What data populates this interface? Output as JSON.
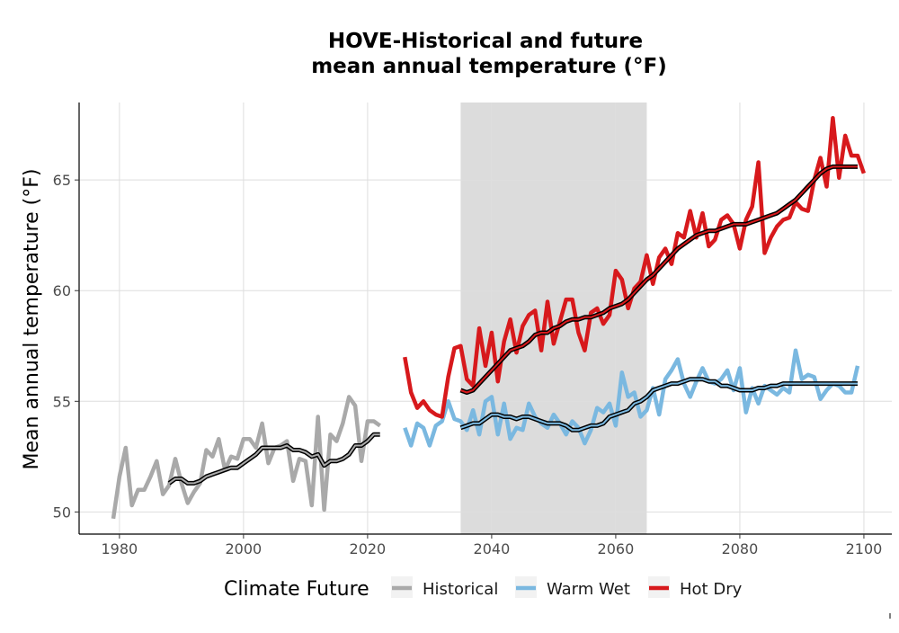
{
  "chart_data": {
    "type": "line",
    "title": [
      "HOVE-Historical and future",
      "mean annual temperature (°F)"
    ],
    "xlabel": "",
    "ylabel": "Mean annual temperature (°F)",
    "xlim": [
      1973.5,
      2104.5
    ],
    "ylim": [
      49,
      68.5
    ],
    "xticks": [
      1980,
      2000,
      2020,
      2040,
      2060,
      2080,
      2100
    ],
    "yticks": [
      50,
      55,
      60,
      65
    ],
    "grid": true,
    "shaded_region": [
      2035,
      2065
    ],
    "legend": {
      "title": "Climate Future",
      "position": "bottom"
    },
    "colors": {
      "Historical": "#a9a9a9",
      "Warm Wet": "#7ab8e0",
      "Hot Dry": "#d7191c",
      "smooth": "#000000",
      "shade": "#dcdcdc"
    },
    "series": [
      {
        "name": "Historical",
        "x_start": 1979,
        "values": [
          49.7,
          51.6,
          52.9,
          50.3,
          51.0,
          51.0,
          51.6,
          52.3,
          50.8,
          51.2,
          52.4,
          51.3,
          50.4,
          50.9,
          51.3,
          52.8,
          52.5,
          53.3,
          51.9,
          52.5,
          52.4,
          53.3,
          53.3,
          52.9,
          54.0,
          52.2,
          52.9,
          53.0,
          53.2,
          51.4,
          52.4,
          52.3,
          50.3,
          54.3,
          50.1,
          53.5,
          53.2,
          54.0,
          55.2,
          54.8,
          52.3,
          54.1,
          54.1,
          53.9
        ]
      },
      {
        "name": "Warm Wet",
        "x_start": 2026,
        "values": [
          53.8,
          53.0,
          54.0,
          53.8,
          53.0,
          53.9,
          54.1,
          55.0,
          54.2,
          54.1,
          53.7,
          54.6,
          53.5,
          55.0,
          55.2,
          53.5,
          54.9,
          53.3,
          53.8,
          53.7,
          54.9,
          54.3,
          54.0,
          53.8,
          54.4,
          54.0,
          53.5,
          54.1,
          53.8,
          53.1,
          53.7,
          54.7,
          54.5,
          54.9,
          53.9,
          56.3,
          55.2,
          55.4,
          54.3,
          54.6,
          55.6,
          54.4,
          56.0,
          56.4,
          56.9,
          55.8,
          55.2,
          55.9,
          56.5,
          55.9,
          55.8,
          56.0,
          56.4,
          55.5,
          56.5,
          54.5,
          55.6,
          54.9,
          55.7,
          55.5,
          55.3,
          55.6,
          55.4,
          57.3,
          56.0,
          56.2,
          56.1,
          55.1,
          55.5,
          55.8,
          55.7,
          55.4,
          55.4,
          56.6
        ]
      },
      {
        "name": "Hot Dry",
        "x_start": 2026,
        "values": [
          57.0,
          55.4,
          54.7,
          55.0,
          54.6,
          54.4,
          54.3,
          56.1,
          57.4,
          57.5,
          56.0,
          55.7,
          58.3,
          56.6,
          58.1,
          55.9,
          57.7,
          58.7,
          57.2,
          58.4,
          58.9,
          59.1,
          57.3,
          59.5,
          57.6,
          58.6,
          59.6,
          59.6,
          58.1,
          57.3,
          59.0,
          59.2,
          58.5,
          58.9,
          60.9,
          60.5,
          59.2,
          60.1,
          60.4,
          61.6,
          60.3,
          61.5,
          61.9,
          61.2,
          62.6,
          62.4,
          63.6,
          62.4,
          63.5,
          62.0,
          62.3,
          63.2,
          63.4,
          63.0,
          61.9,
          63.2,
          63.8,
          65.8,
          61.7,
          62.4,
          62.9,
          63.2,
          63.3,
          64.0,
          63.7,
          63.6,
          65.0,
          66.0,
          64.7,
          67.8,
          65.1,
          67.0,
          66.1,
          66.1,
          65.3
        ]
      }
    ],
    "smoothed": [
      {
        "name": "Historical",
        "x_start": 1988,
        "values": [
          51.3,
          51.5,
          51.5,
          51.3,
          51.3,
          51.4,
          51.6,
          51.7,
          51.8,
          51.9,
          52.0,
          52.0,
          52.2,
          52.4,
          52.6,
          52.9,
          52.9,
          52.9,
          52.9,
          53.0,
          52.8,
          52.8,
          52.7,
          52.5,
          52.6,
          52.1,
          52.3,
          52.3,
          52.4,
          52.6,
          53.0,
          53.0,
          53.2,
          53.5,
          53.5
        ]
      },
      {
        "name": "Warm Wet",
        "x_start": 2035,
        "values": [
          53.8,
          53.9,
          54.0,
          54.0,
          54.2,
          54.4,
          54.4,
          54.3,
          54.3,
          54.2,
          54.3,
          54.3,
          54.2,
          54.1,
          54.0,
          54.0,
          54.0,
          53.9,
          53.7,
          53.7,
          53.8,
          53.9,
          53.9,
          54.0,
          54.3,
          54.4,
          54.5,
          54.6,
          54.9,
          55.0,
          55.2,
          55.5,
          55.6,
          55.7,
          55.8,
          55.8,
          55.9,
          56.0,
          56.0,
          56.0,
          55.9,
          55.9,
          55.7,
          55.7,
          55.6,
          55.5,
          55.5,
          55.5,
          55.6,
          55.6,
          55.7,
          55.7,
          55.8,
          55.8,
          55.8,
          55.8,
          55.8,
          55.8,
          55.8,
          55.8,
          55.8,
          55.8,
          55.8,
          55.8,
          55.8
        ]
      },
      {
        "name": "Hot Dry",
        "x_start": 2035,
        "values": [
          55.5,
          55.4,
          55.5,
          55.8,
          56.1,
          56.4,
          56.7,
          57.0,
          57.3,
          57.4,
          57.5,
          57.7,
          58.0,
          58.1,
          58.1,
          58.3,
          58.4,
          58.6,
          58.7,
          58.7,
          58.8,
          58.8,
          58.9,
          59.0,
          59.2,
          59.3,
          59.4,
          59.6,
          59.9,
          60.2,
          60.5,
          60.7,
          61.0,
          61.3,
          61.6,
          61.9,
          62.1,
          62.3,
          62.5,
          62.6,
          62.7,
          62.7,
          62.8,
          62.9,
          63.0,
          63.0,
          63.0,
          63.1,
          63.2,
          63.3,
          63.4,
          63.5,
          63.7,
          63.9,
          64.1,
          64.4,
          64.7,
          65.0,
          65.3,
          65.5,
          65.6,
          65.6,
          65.6,
          65.6,
          65.6
        ]
      }
    ]
  }
}
